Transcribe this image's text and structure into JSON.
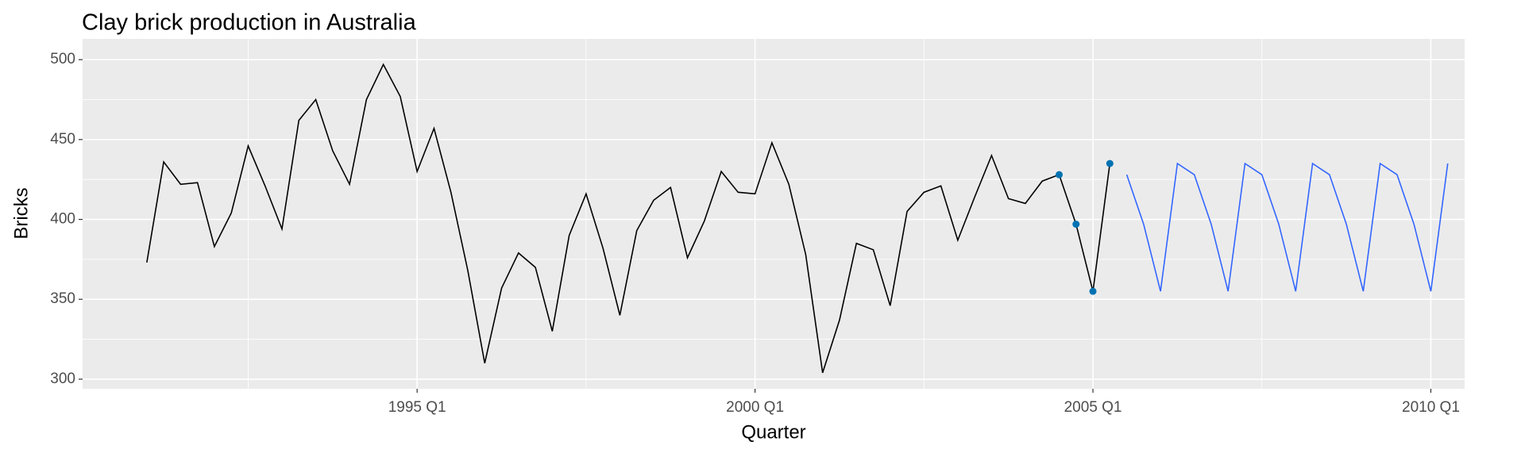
{
  "chart_data": {
    "type": "line",
    "title": "Clay brick production in Australia",
    "xlabel": "Quarter",
    "ylabel": "Bricks",
    "series": [
      {
        "color": "#000000",
        "marker": false,
        "x": [
          1991,
          1991.25,
          1991.5,
          1991.75,
          1992,
          1992.25,
          1992.5,
          1992.75,
          1993,
          1993.25,
          1993.5,
          1993.75,
          1994,
          1994.25,
          1994.5,
          1994.75,
          1995,
          1995.25,
          1995.5,
          1995.75,
          1996,
          1996.25,
          1996.5,
          1996.75,
          1997,
          1997.25,
          1997.5,
          1997.75,
          1998,
          1998.25,
          1998.5,
          1998.75,
          1999,
          1999.25,
          1999.5,
          1999.75,
          2000,
          2000.25,
          2000.5,
          2000.75,
          2001,
          2001.25,
          2001.5,
          2001.75,
          2002,
          2002.25,
          2002.5,
          2002.75,
          2003,
          2003.25,
          2003.5,
          2003.75,
          2004,
          2004.25,
          2004.5,
          2004.75,
          2005,
          2005.25
        ],
        "values": [
          373,
          436,
          422,
          423,
          383,
          404,
          446,
          421,
          394,
          462,
          475,
          443,
          422,
          475,
          497,
          477,
          430,
          457,
          417,
          368,
          310,
          357,
          379,
          370,
          330,
          390,
          416,
          382,
          340,
          393,
          412,
          420,
          376,
          399,
          430,
          417,
          416,
          448,
          422,
          378,
          304,
          337,
          385,
          381,
          346,
          405,
          417,
          421,
          387,
          414,
          440,
          413,
          410,
          424,
          428,
          397,
          355,
          435
        ]
      },
      {
        "color": "#3366ff",
        "marker": false,
        "x": [
          2005.5,
          2005.75,
          2006,
          2006.25,
          2006.5,
          2006.75,
          2007,
          2007.25,
          2007.5,
          2007.75,
          2008,
          2008.25,
          2008.5,
          2008.75,
          2009,
          2009.25,
          2009.5,
          2009.75,
          2010,
          2010.25
        ],
        "values": [
          428,
          397,
          355,
          435,
          428,
          397,
          355,
          435,
          428,
          397,
          355,
          435,
          428,
          397,
          355,
          435,
          428,
          397,
          355,
          435
        ]
      },
      {
        "color": "#0072b2",
        "marker": true,
        "line": false,
        "x": [
          2004.5,
          2004.75,
          2005,
          2005.25
        ],
        "values": [
          428,
          397,
          355,
          435
        ]
      }
    ],
    "xlim": [
      1990.05,
      2010.5
    ],
    "ylim": [
      294,
      513
    ],
    "xticks": [
      {
        "value": 1995,
        "label": "1995 Q1"
      },
      {
        "value": 2000,
        "label": "2000 Q1"
      },
      {
        "value": 2005,
        "label": "2005 Q1"
      },
      {
        "value": 2010,
        "label": "2010 Q1"
      }
    ],
    "xminorticks": [
      1992.5,
      1997.5,
      2002.5,
      2007.5
    ],
    "yticks": [
      300,
      350,
      400,
      450,
      500
    ],
    "yminorticks": [
      325,
      375,
      425,
      475
    ],
    "grid": true
  }
}
